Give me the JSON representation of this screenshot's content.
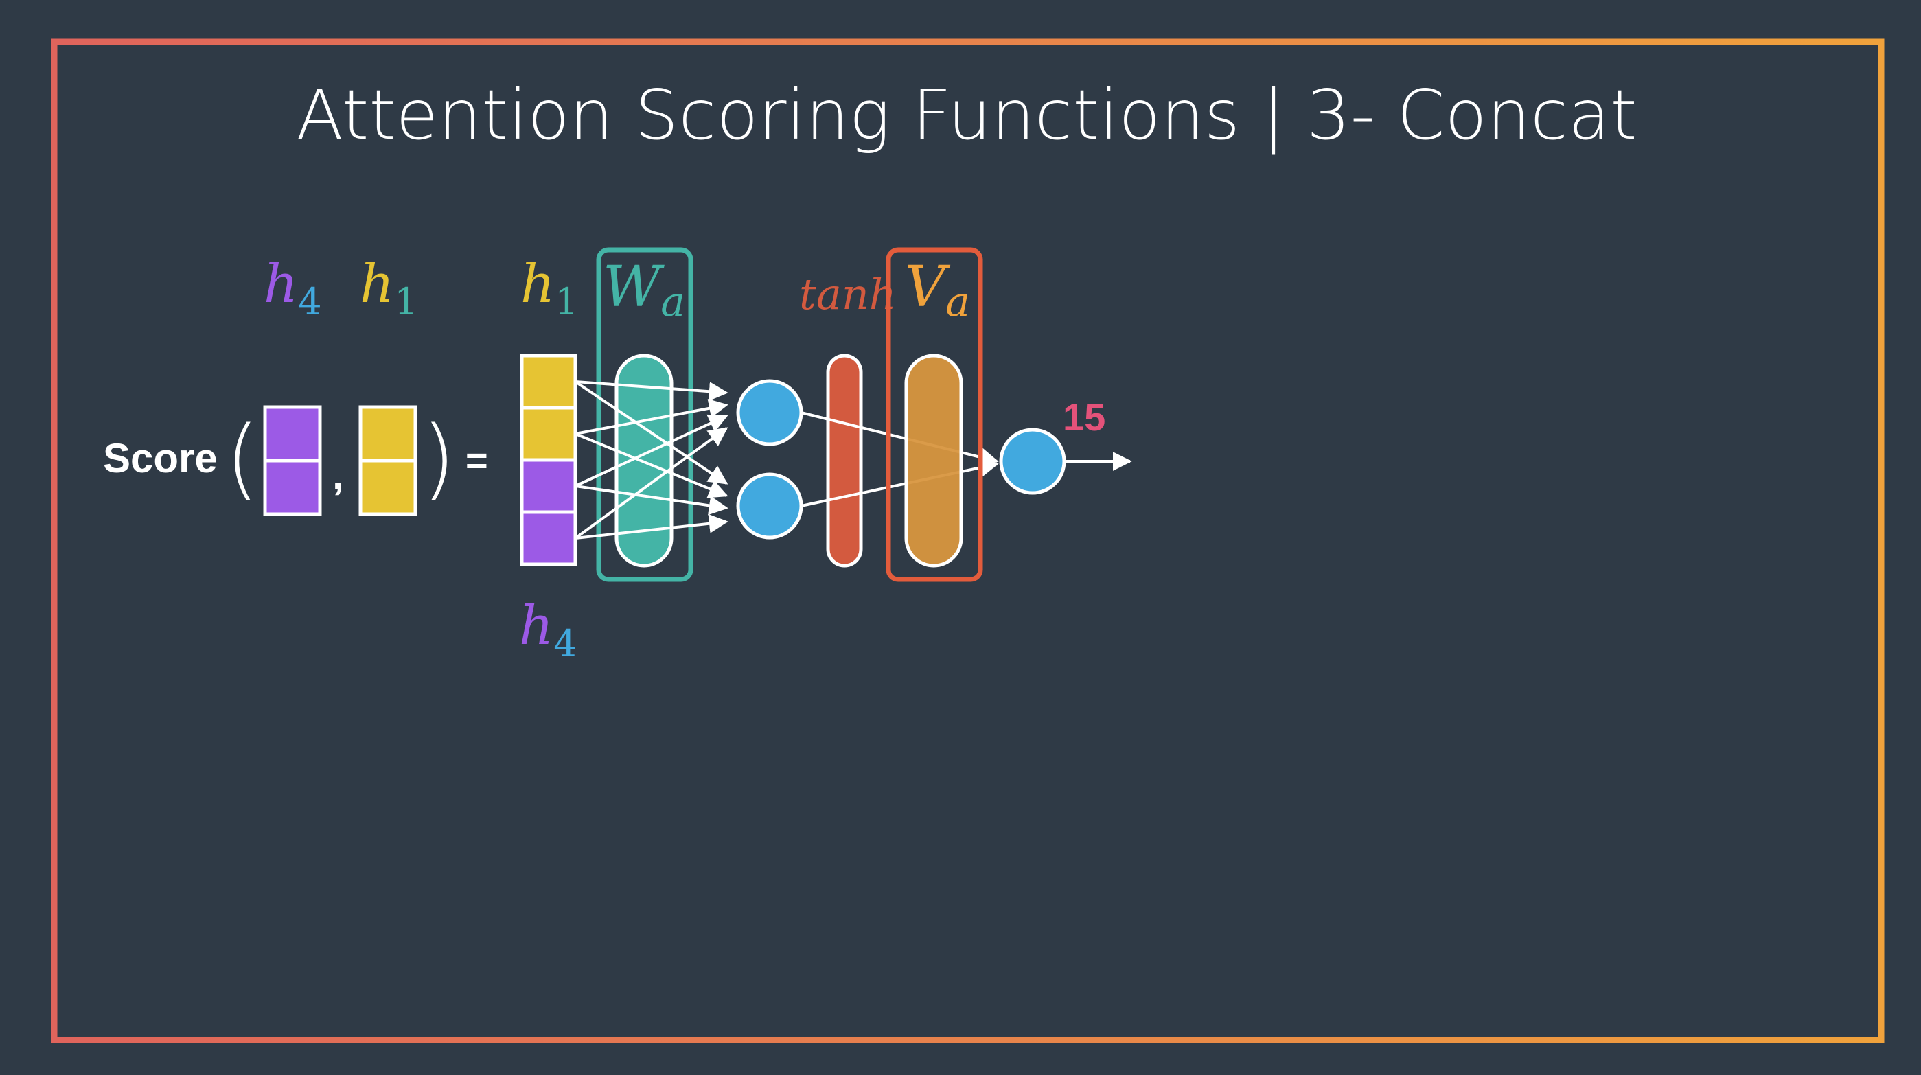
{
  "title": "Attention Scoring Functions | 3- Concat",
  "score_label": "Score",
  "open_paren": "(",
  "close_paren": ")",
  "comma": ",",
  "equals": "=",
  "args": [
    {
      "symbol": "h",
      "subscript": "4"
    },
    {
      "symbol": "h",
      "subscript": "1"
    }
  ],
  "concat_top": {
    "symbol": "h",
    "subscript": "1"
  },
  "concat_bottom": {
    "symbol": "h",
    "subscript": "4"
  },
  "wa": {
    "symbol": "W",
    "subscript": "a"
  },
  "tanh_label": "tanh",
  "va": {
    "symbol": "V",
    "subscript": "a"
  },
  "output_value": "15",
  "colors": {
    "background": "#2f3a46",
    "frame_left": "#e0645c",
    "frame_right": "#f0a23c",
    "purple": "#9c5ae6",
    "yellow": "#e6c433",
    "teal": "#44b4a6",
    "blue": "#41a9df",
    "tanh": "#d35a3f",
    "va_fill": "#d8963f",
    "va_border": "#e35c3c",
    "pink": "#e4527a",
    "white": "#ffffff"
  }
}
